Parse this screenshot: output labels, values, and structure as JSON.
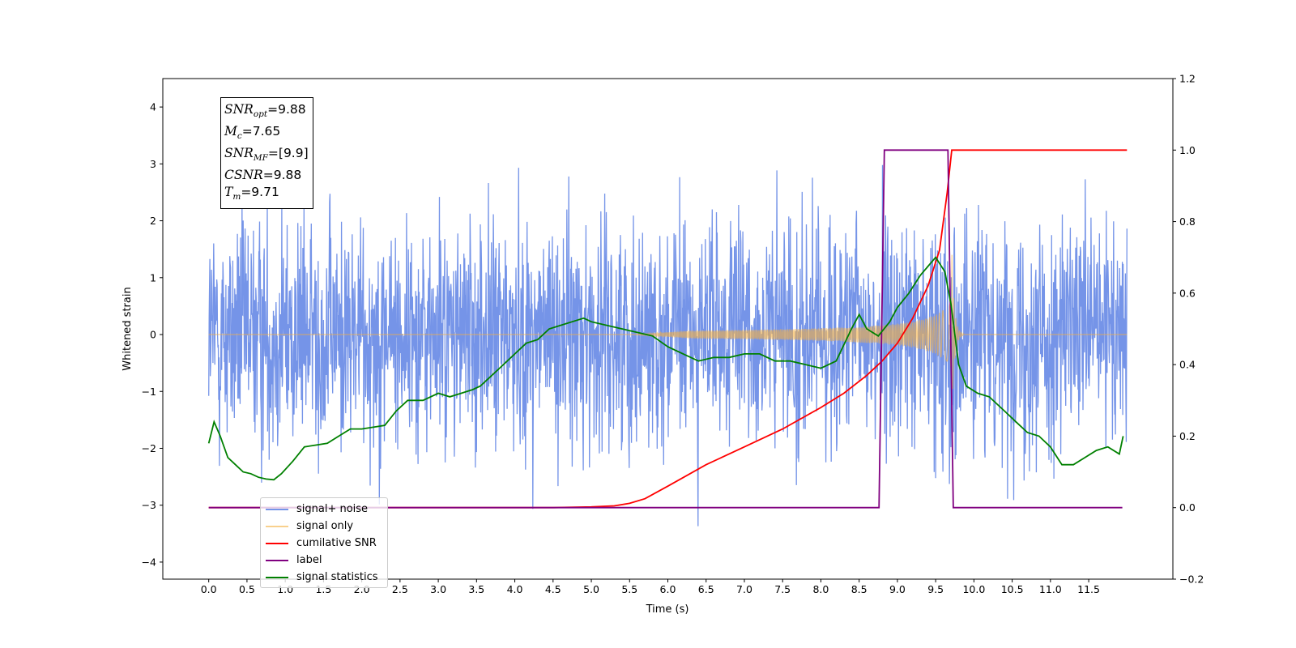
{
  "chart_data": {
    "type": "line",
    "title": "",
    "xlabel": "Time (s)",
    "ylabel": "Whitened strain",
    "ylabel_right": "",
    "xlim": [
      -0.6,
      12.6
    ],
    "ylim": [
      -4.3,
      4.5
    ],
    "ylim_right": [
      -0.2,
      1.2
    ],
    "x_ticks": [
      "0.0",
      "0.5",
      "1.0",
      "1.5",
      "2.0",
      "2.5",
      "3.0",
      "3.5",
      "4.0",
      "4.5",
      "5.0",
      "5.5",
      "6.0",
      "6.5",
      "7.0",
      "7.5",
      "8.0",
      "8.5",
      "9.0",
      "9.5",
      "10.0",
      "10.5",
      "11.0",
      "11.5"
    ],
    "y_ticks": [
      "−4",
      "−3",
      "−2",
      "−1",
      "0",
      "1",
      "2",
      "3",
      "4"
    ],
    "y_ticks_right": [
      "−0.2",
      "0.0",
      "0.2",
      "0.4",
      "0.6",
      "0.8",
      "1.0",
      "1.2"
    ],
    "grid": false,
    "legend_position": "lower-left",
    "annotation": {
      "lines": [
        {
          "sym": "SNR",
          "sub": "opt",
          "val": "=9.88"
        },
        {
          "sym": "M",
          "sub": "c",
          "val": "=7.65"
        },
        {
          "sym": "SNR",
          "sub": "MF",
          "val": "=[9.9]"
        },
        {
          "sym": "CSNR",
          "sub": "",
          "val": "=9.88"
        },
        {
          "sym": "T",
          "sub": "m",
          "val": "=9.71"
        }
      ]
    },
    "series": [
      {
        "name": "signal+ noise",
        "color": "#7594e8",
        "axis": "left",
        "description_values": {
          "x_range": [
            0.0,
            12.0
          ],
          "approx_std": 1.0,
          "max": 4.1,
          "min": -3.85
        }
      },
      {
        "name": "signal only",
        "color": "#f5b041",
        "axis": "left",
        "description_values": {
          "x_start": 5.5,
          "x_merge": 9.71,
          "peak_amplitude": 0.6
        }
      },
      {
        "name": "cumilative SNR",
        "color": "#ff0000",
        "axis": "right",
        "x": [
          0.0,
          4.5,
          5.0,
          5.3,
          5.5,
          5.7,
          6.0,
          6.5,
          7.0,
          7.5,
          8.0,
          8.3,
          8.6,
          8.8,
          9.0,
          9.2,
          9.4,
          9.55,
          9.65,
          9.71,
          12.0
        ],
        "values": [
          0.0,
          0.0,
          0.002,
          0.005,
          0.012,
          0.025,
          0.06,
          0.12,
          0.17,
          0.22,
          0.28,
          0.32,
          0.37,
          0.41,
          0.46,
          0.53,
          0.62,
          0.72,
          0.88,
          1.0,
          1.0
        ]
      },
      {
        "name": "label",
        "color": "#800080",
        "axis": "right",
        "x": [
          0.0,
          8.76,
          8.83,
          9.66,
          9.73,
          11.94
        ],
        "values": [
          0.0,
          0.0,
          1.0,
          1.0,
          0.0,
          0.0
        ]
      },
      {
        "name": "signal statistics",
        "color": "#008000",
        "axis": "right",
        "x": [
          0.0,
          0.07,
          0.15,
          0.25,
          0.35,
          0.45,
          0.55,
          0.65,
          0.75,
          0.85,
          0.95,
          1.1,
          1.25,
          1.4,
          1.55,
          1.7,
          1.85,
          2.0,
          2.15,
          2.3,
          2.45,
          2.6,
          2.8,
          2.9,
          3.0,
          3.15,
          3.3,
          3.45,
          3.55,
          3.65,
          3.8,
          4.0,
          4.15,
          4.3,
          4.45,
          4.6,
          4.75,
          4.9,
          5.0,
          5.2,
          5.4,
          5.6,
          5.8,
          6.0,
          6.2,
          6.4,
          6.6,
          6.8,
          7.0,
          7.2,
          7.4,
          7.6,
          7.8,
          8.0,
          8.2,
          8.4,
          8.5,
          8.6,
          8.75,
          8.9,
          9.0,
          9.15,
          9.3,
          9.5,
          9.62,
          9.7,
          9.8,
          9.9,
          10.05,
          10.2,
          10.4,
          10.55,
          10.7,
          10.85,
          11.0,
          11.15,
          11.3,
          11.45,
          11.6,
          11.75,
          11.9,
          11.95
        ],
        "values": [
          0.18,
          0.24,
          0.2,
          0.14,
          0.12,
          0.1,
          0.095,
          0.085,
          0.08,
          0.078,
          0.095,
          0.13,
          0.17,
          0.175,
          0.18,
          0.2,
          0.22,
          0.22,
          0.225,
          0.23,
          0.27,
          0.3,
          0.3,
          0.31,
          0.32,
          0.31,
          0.32,
          0.33,
          0.34,
          0.36,
          0.39,
          0.43,
          0.46,
          0.47,
          0.5,
          0.51,
          0.52,
          0.53,
          0.52,
          0.51,
          0.5,
          0.49,
          0.48,
          0.45,
          0.43,
          0.41,
          0.42,
          0.42,
          0.43,
          0.43,
          0.41,
          0.41,
          0.4,
          0.39,
          0.41,
          0.5,
          0.54,
          0.5,
          0.48,
          0.52,
          0.56,
          0.6,
          0.65,
          0.7,
          0.66,
          0.57,
          0.4,
          0.34,
          0.32,
          0.31,
          0.27,
          0.24,
          0.21,
          0.2,
          0.17,
          0.12,
          0.12,
          0.14,
          0.16,
          0.17,
          0.15,
          0.2
        ]
      }
    ]
  }
}
